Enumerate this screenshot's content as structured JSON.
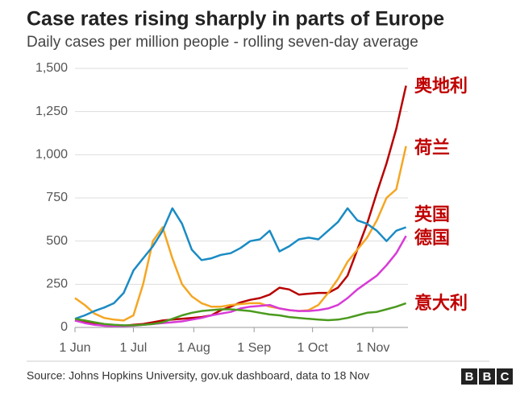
{
  "chart_data": {
    "type": "line",
    "title": "Case rates rising sharply in parts of Europe",
    "subtitle": "Daily cases per million people - rolling seven-day average",
    "source": "Source: Johns Hopkins University, gov.uk dashboard, data to 18 Nov",
    "logo": [
      "B",
      "B",
      "C"
    ],
    "x": [
      0,
      5,
      10,
      15,
      20,
      25,
      30,
      35,
      40,
      45,
      50,
      55,
      60,
      65,
      70,
      75,
      80,
      85,
      90,
      95,
      100,
      105,
      110,
      115,
      120,
      125,
      130,
      135,
      140,
      145,
      150,
      155,
      160,
      165,
      170
    ],
    "xlim": [
      0,
      171
    ],
    "xticks": [
      {
        "value": 0,
        "label": "1 Jun"
      },
      {
        "value": 30,
        "label": "1 Jul"
      },
      {
        "value": 61,
        "label": "1 Aug"
      },
      {
        "value": 92,
        "label": "1 Sep"
      },
      {
        "value": 122,
        "label": "1 Oct"
      },
      {
        "value": 153,
        "label": "1 Nov"
      }
    ],
    "ylim": [
      0,
      1500
    ],
    "yticks": [
      0,
      250,
      500,
      750,
      {
        "value": 1000,
        "label": "1,000"
      },
      {
        "value": 1250,
        "label": "1,250"
      },
      {
        "value": 1500,
        "label": "1,500"
      }
    ],
    "grid": true,
    "series": [
      {
        "name": "奥地利",
        "color": "#b80000",
        "values": [
          40,
          30,
          20,
          10,
          8,
          10,
          15,
          20,
          30,
          40,
          45,
          50,
          55,
          60,
          70,
          100,
          120,
          145,
          160,
          170,
          190,
          230,
          220,
          190,
          195,
          200,
          200,
          230,
          300,
          450,
          600,
          780,
          950,
          1150,
          1400
        ]
      },
      {
        "name": "荷兰",
        "color": "#f5a623",
        "values": [
          170,
          130,
          80,
          55,
          45,
          40,
          70,
          250,
          500,
          580,
          400,
          250,
          180,
          140,
          120,
          120,
          130,
          135,
          140,
          140,
          120,
          110,
          100,
          95,
          100,
          130,
          200,
          280,
          380,
          450,
          520,
          620,
          750,
          800,
          1050
        ]
      },
      {
        "name": "英国",
        "color": "#1a8bc4",
        "values": [
          50,
          70,
          95,
          115,
          140,
          200,
          330,
          400,
          470,
          560,
          690,
          600,
          450,
          390,
          400,
          420,
          430,
          460,
          500,
          510,
          560,
          440,
          470,
          510,
          520,
          510,
          560,
          610,
          690,
          620,
          600,
          560,
          500,
          560,
          580
        ]
      },
      {
        "name": "德国",
        "color": "#d83ad8",
        "values": [
          40,
          25,
          15,
          10,
          8,
          8,
          10,
          15,
          20,
          25,
          30,
          35,
          45,
          55,
          70,
          80,
          90,
          110,
          120,
          125,
          130,
          110,
          100,
          95,
          95,
          100,
          110,
          130,
          170,
          220,
          260,
          300,
          360,
          430,
          530
        ]
      },
      {
        "name": "意大利",
        "color": "#4b9a1e",
        "values": [
          50,
          40,
          30,
          20,
          15,
          12,
          12,
          15,
          20,
          30,
          50,
          70,
          85,
          95,
          100,
          105,
          105,
          100,
          95,
          85,
          75,
          70,
          60,
          55,
          50,
          45,
          42,
          45,
          55,
          70,
          85,
          90,
          105,
          120,
          140
        ]
      }
    ]
  }
}
